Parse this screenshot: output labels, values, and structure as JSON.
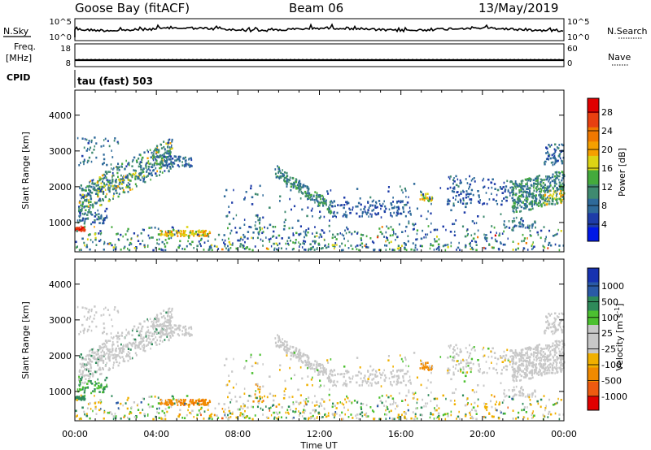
{
  "header": {
    "station": "Goose Bay (fitACF)",
    "beam": "Beam 06",
    "date": "13/May/2019"
  },
  "top_panels": {
    "nsky_label": "N.Sky",
    "nsky_ticks": [
      "10^5",
      "10^0"
    ],
    "nsearch_label": "N.Search",
    "nsearch_ticks": [
      "10^5",
      "10^0"
    ],
    "freq_label_1": "Freq.",
    "freq_label_2": "[MHz]",
    "freq_ticks": [
      "18",
      "8"
    ],
    "nave_label": "Nave",
    "nave_ticks": [
      "60",
      "0"
    ],
    "cpid_label": "CPID",
    "cpid_text": "tau (fast) 503"
  },
  "colors": {
    "power_scale": [
      "#0018e6",
      "#1e3ca8",
      "#2e6a9a",
      "#3f8a70",
      "#44aa3c",
      "#ddd414",
      "#f5a000",
      "#f07800",
      "#e84010",
      "#e00000"
    ],
    "velocity_scale": [
      "#1732b0",
      "#2a5aa6",
      "#2e8a5a",
      "#4cc030",
      "#c8c8c8",
      "#c8c8c8",
      "#f0b000",
      "#f08a00",
      "#ee5a10",
      "#e00000"
    ]
  },
  "chart_data": [
    {
      "type": "heatmap",
      "name": "power",
      "ylabel": "Slant Range [km]",
      "ylim": [
        180,
        4700
      ],
      "y_ticks": [
        1000,
        2000,
        3000,
        4000
      ],
      "x_ticks": [
        "00:00",
        "04:00",
        "08:00",
        "12:00",
        "16:00",
        "20:00",
        "00:00"
      ],
      "colorbar": {
        "label": "Power [dB]",
        "ticks": [
          "4",
          "8",
          "12",
          "16",
          "20",
          "24",
          "28"
        ],
        "range": [
          0,
          30
        ]
      },
      "features": [
        {
          "t": [
            0.1,
            4.8
          ],
          "r": [
            1500,
            2850
          ],
          "level": 9,
          "desc": "band"
        },
        {
          "t": [
            0.0,
            0.5
          ],
          "r": [
            750,
            850
          ],
          "level": 26
        },
        {
          "t": [
            4.2,
            6.6
          ],
          "r": [
            600,
            750
          ],
          "level": 16
        },
        {
          "t": [
            9.8,
            12.5
          ],
          "r": [
            1400,
            2400
          ],
          "level": 10
        },
        {
          "t": [
            21.5,
            24.0
          ],
          "r": [
            1500,
            2500
          ],
          "level": 14
        },
        {
          "t": [
            17.0,
            17.5
          ],
          "r": [
            1600,
            1800
          ],
          "level": 18
        }
      ]
    },
    {
      "type": "heatmap",
      "name": "velocity",
      "ylabel": "Slant Range [km]",
      "ylim": [
        180,
        4700
      ],
      "y_ticks": [
        1000,
        2000,
        3000,
        4000
      ],
      "x_ticks": [
        "00:00",
        "04:00",
        "08:00",
        "12:00",
        "16:00",
        "20:00",
        "00:00"
      ],
      "xlabel": "Time UT",
      "colorbar": {
        "label": "Velocity [m s",
        "label_sup": "-1",
        "label_end": "]",
        "ticks": [
          "1000",
          "500",
          "100",
          "25",
          "-25",
          "-100",
          "-500",
          "-1000"
        ]
      },
      "features": [
        {
          "t": [
            0.1,
            4.8
          ],
          "r": [
            1500,
            2850
          ],
          "level": 0,
          "desc": "ground scatter"
        },
        {
          "t": [
            0.0,
            0.5
          ],
          "r": [
            700,
            900
          ],
          "level": 150
        },
        {
          "t": [
            4.2,
            6.6
          ],
          "r": [
            600,
            750
          ],
          "level": -150
        },
        {
          "t": [
            17.0,
            17.5
          ],
          "r": [
            1600,
            1800
          ],
          "level": -200
        }
      ]
    }
  ]
}
